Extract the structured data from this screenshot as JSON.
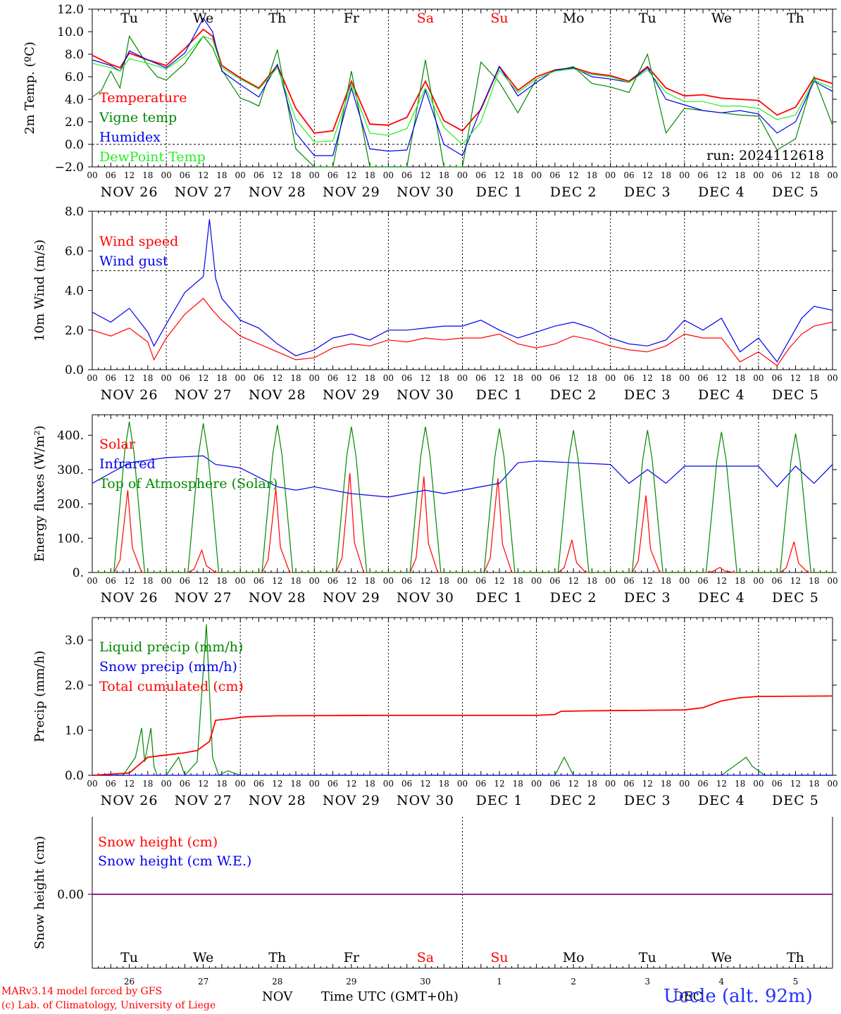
{
  "days": [
    {
      "abbr": "Tu",
      "weekend": false,
      "date": "NOV 26",
      "num": "26"
    },
    {
      "abbr": "We",
      "weekend": false,
      "date": "NOV 27",
      "num": "27"
    },
    {
      "abbr": "Th",
      "weekend": false,
      "date": "NOV 28",
      "num": "28"
    },
    {
      "abbr": "Fr",
      "weekend": false,
      "date": "NOV 29",
      "num": "29"
    },
    {
      "abbr": "Sa",
      "weekend": true,
      "date": "NOV 30",
      "num": "30"
    },
    {
      "abbr": "Su",
      "weekend": true,
      "date": "DEC  1",
      "num": "1"
    },
    {
      "abbr": "Mo",
      "weekend": false,
      "date": "DEC  2",
      "num": "2"
    },
    {
      "abbr": "Tu",
      "weekend": false,
      "date": "DEC  3",
      "num": "3"
    },
    {
      "abbr": "We",
      "weekend": false,
      "date": "DEC  4",
      "num": "4"
    },
    {
      "abbr": "Th",
      "weekend": false,
      "date": "DEC  5",
      "num": "5"
    }
  ],
  "hour_ticks": [
    "00",
    "06",
    "12",
    "18"
  ],
  "colors": {
    "red": "#ff0000",
    "green": "#008800",
    "blue": "#0000ee",
    "lightgreen": "#22ee22",
    "purple": "#800080",
    "black": "#000000"
  },
  "footer": {
    "model": "MARv3.14 model forced by GFS",
    "lab": "(c) Lab. of Climatology, University of Liege",
    "month_left": "NOV",
    "month_right": "DEC",
    "time_label": "Time UTC (GMT+0h)",
    "station": "Uccle (alt. 92m)"
  },
  "chart_data": [
    {
      "type": "line",
      "ylabel": "2m Temp. (ºC)",
      "ylim": [
        -2,
        12
      ],
      "yticks": [
        "12.0",
        "10.0",
        "8.0",
        "6.0",
        "4.0",
        "2.0",
        "0.0",
        "−2.0"
      ],
      "ref_line": 0,
      "run_label": "run: 2024112618",
      "x_unit": "hours since NOV 26 00 UTC",
      "series": [
        {
          "name": "Temperature",
          "color": "red",
          "x": [
            0,
            6,
            9,
            12,
            18,
            24,
            30,
            36,
            39,
            42,
            48,
            54,
            60,
            66,
            72,
            78,
            84,
            90,
            96,
            102,
            108,
            114,
            120,
            126,
            132,
            138,
            144,
            150,
            156,
            162,
            168,
            174,
            180,
            186,
            192,
            198,
            204,
            210,
            216,
            222,
            228,
            234,
            240
          ],
          "y": [
            7.9,
            7.1,
            6.8,
            8.1,
            7.5,
            7.0,
            8.5,
            10.2,
            9.6,
            7.0,
            5.9,
            5.0,
            7.0,
            3.2,
            1.0,
            1.2,
            5.6,
            1.8,
            1.7,
            2.4,
            5.6,
            2.1,
            1.2,
            3.1,
            6.9,
            4.8,
            6.0,
            6.6,
            6.8,
            6.3,
            6.1,
            5.6,
            6.9,
            5.0,
            4.3,
            4.4,
            4.1,
            4.0,
            3.9,
            2.6,
            3.3,
            5.9,
            5.4
          ]
        },
        {
          "name": "Vigne temp",
          "color": "green",
          "x": [
            0,
            3,
            6,
            9,
            12,
            18,
            21,
            24,
            30,
            36,
            39,
            42,
            48,
            51,
            54,
            60,
            66,
            72,
            78,
            84,
            90,
            96,
            102,
            108,
            114,
            120,
            126,
            132,
            138,
            144,
            150,
            156,
            162,
            168,
            174,
            180,
            186,
            192,
            198,
            204,
            210,
            216,
            222,
            228,
            234,
            240
          ],
          "y": [
            4.2,
            4.8,
            6.5,
            5.0,
            9.6,
            7.0,
            6.0,
            5.7,
            7.2,
            9.6,
            8.6,
            6.6,
            4.1,
            3.8,
            3.4,
            8.4,
            -0.4,
            -2.0,
            -2.0,
            6.5,
            -2.0,
            -2.0,
            -2.0,
            7.5,
            -2.0,
            -2.0,
            7.3,
            5.5,
            2.8,
            5.8,
            6.5,
            6.9,
            5.4,
            5.1,
            4.6,
            8.0,
            1.0,
            3.2,
            3.0,
            2.8,
            2.6,
            2.5,
            -0.5,
            0.5,
            6.0,
            1.7
          ]
        },
        {
          "name": "Humidex",
          "color": "blue",
          "x": [
            0,
            6,
            9,
            12,
            18,
            24,
            30,
            36,
            39,
            42,
            48,
            54,
            60,
            66,
            72,
            78,
            84,
            90,
            96,
            102,
            108,
            114,
            120,
            126,
            132,
            138,
            144,
            150,
            156,
            162,
            168,
            174,
            180,
            186,
            192,
            198,
            204,
            210,
            216,
            222,
            228,
            234,
            240
          ],
          "y": [
            7.5,
            7.0,
            6.5,
            8.3,
            7.5,
            6.8,
            8.1,
            11.2,
            10.0,
            6.5,
            5.3,
            4.2,
            7.1,
            1.0,
            -1.0,
            -1.0,
            5.0,
            -0.4,
            -0.6,
            -0.5,
            4.8,
            0.0,
            -1.0,
            3.2,
            6.9,
            4.3,
            5.5,
            6.6,
            6.8,
            6.0,
            5.8,
            5.5,
            6.8,
            4.0,
            3.5,
            3.0,
            2.8,
            3.0,
            2.7,
            1.0,
            2.0,
            5.6,
            4.7
          ]
        },
        {
          "name": "DewPoint Temp",
          "color": "lightgreen",
          "x": [
            0,
            6,
            9,
            12,
            18,
            24,
            30,
            36,
            39,
            42,
            48,
            54,
            60,
            66,
            72,
            78,
            84,
            90,
            96,
            102,
            108,
            114,
            120,
            126,
            132,
            138,
            144,
            150,
            156,
            162,
            168,
            174,
            180,
            186,
            192,
            198,
            204,
            210,
            216,
            222,
            228,
            234,
            240
          ],
          "y": [
            7.2,
            6.8,
            6.5,
            7.6,
            7.2,
            6.7,
            7.8,
            9.6,
            9.3,
            6.8,
            5.8,
            4.9,
            6.8,
            2.2,
            0.2,
            0.3,
            5.3,
            1.0,
            0.8,
            1.4,
            5.0,
            1.5,
            0.0,
            2.0,
            6.6,
            4.6,
            5.8,
            6.5,
            6.7,
            6.2,
            6.0,
            5.5,
            6.6,
            4.6,
            3.8,
            3.8,
            3.4,
            3.4,
            3.2,
            2.2,
            2.6,
            5.7,
            5.0
          ]
        }
      ]
    },
    {
      "type": "line",
      "ylabel": "10m Wind (m/s)",
      "ylim": [
        0,
        8
      ],
      "yticks": [
        "8.0",
        "6.0",
        "4.0",
        "2.0",
        "0.0"
      ],
      "ref_line": 5,
      "series": [
        {
          "name": "Wind speed",
          "color": "red",
          "x": [
            0,
            6,
            12,
            18,
            20,
            24,
            30,
            36,
            39,
            42,
            48,
            54,
            60,
            66,
            72,
            78,
            84,
            90,
            96,
            102,
            108,
            114,
            120,
            126,
            132,
            138,
            144,
            150,
            156,
            162,
            168,
            174,
            180,
            186,
            192,
            198,
            204,
            210,
            216,
            222,
            226,
            230,
            234,
            240
          ],
          "y": [
            2.0,
            1.7,
            2.1,
            1.4,
            0.5,
            1.6,
            2.8,
            3.6,
            3.0,
            2.5,
            1.7,
            1.3,
            0.9,
            0.5,
            0.6,
            1.1,
            1.3,
            1.2,
            1.5,
            1.4,
            1.6,
            1.5,
            1.6,
            1.6,
            1.8,
            1.3,
            1.1,
            1.3,
            1.7,
            1.5,
            1.2,
            1.0,
            0.9,
            1.2,
            1.8,
            1.6,
            1.6,
            0.4,
            0.9,
            0.2,
            1.1,
            1.8,
            2.2,
            2.4
          ]
        },
        {
          "name": "Wind gust",
          "color": "blue",
          "x": [
            0,
            6,
            12,
            18,
            20,
            24,
            30,
            36,
            38,
            40,
            42,
            48,
            54,
            60,
            66,
            72,
            78,
            84,
            90,
            96,
            102,
            108,
            114,
            120,
            126,
            132,
            138,
            144,
            150,
            156,
            162,
            168,
            174,
            180,
            186,
            192,
            198,
            204,
            210,
            216,
            222,
            226,
            230,
            234,
            240
          ],
          "y": [
            2.9,
            2.4,
            3.1,
            1.9,
            1.2,
            2.3,
            3.9,
            4.7,
            7.6,
            4.6,
            3.6,
            2.5,
            2.1,
            1.3,
            0.7,
            1.0,
            1.6,
            1.8,
            1.5,
            2.0,
            2.0,
            2.1,
            2.2,
            2.2,
            2.5,
            2.0,
            1.6,
            1.9,
            2.2,
            2.4,
            2.1,
            1.6,
            1.3,
            1.2,
            1.5,
            2.5,
            2.0,
            2.6,
            0.9,
            1.6,
            0.4,
            1.5,
            2.6,
            3.2,
            3.0
          ]
        }
      ]
    },
    {
      "type": "line",
      "ylabel": "Energy fluxes (W/m²)",
      "ylim": [
        0,
        460
      ],
      "yticks": [
        "400.",
        "300.",
        "200.",
        "100.",
        "0."
      ],
      "series": [
        {
          "name": "Solar",
          "color": "red",
          "peaks": [
            240,
            65,
            245,
            290,
            280,
            275,
            95,
            225,
            15,
            90
          ]
        },
        {
          "name": "Infrared",
          "color": "blue",
          "x": [
            0,
            12,
            24,
            36,
            40,
            48,
            60,
            66,
            72,
            84,
            96,
            108,
            114,
            120,
            132,
            138,
            144,
            156,
            168,
            174,
            180,
            186,
            192,
            204,
            216,
            222,
            228,
            234,
            240
          ],
          "y": [
            260,
            320,
            335,
            340,
            315,
            305,
            250,
            240,
            250,
            230,
            220,
            240,
            230,
            240,
            260,
            320,
            325,
            320,
            315,
            260,
            300,
            260,
            310,
            310,
            310,
            250,
            310,
            260,
            315
          ]
        },
        {
          "name": "Top of Atmosphere (Solar)",
          "color": "green",
          "peaks": [
            440,
            435,
            430,
            425,
            425,
            420,
            415,
            415,
            410,
            405
          ]
        }
      ]
    },
    {
      "type": "line",
      "ylabel": "Precip (mm/h)",
      "ylim": [
        0,
        3.5
      ],
      "yticks": [
        "3.0",
        "2.0",
        "1.0",
        "0.0"
      ],
      "series": [
        {
          "name": "Liquid precip (mm/h)",
          "color": "green",
          "x": [
            0,
            10,
            14,
            16,
            17,
            19,
            20,
            21,
            24,
            28,
            30,
            34,
            37,
            39,
            41,
            44,
            48,
            60,
            150,
            153,
            156,
            204,
            210,
            212,
            214,
            218,
            240
          ],
          "y": [
            0,
            0,
            0.4,
            1.05,
            0.3,
            1.05,
            0.2,
            0,
            0,
            0.4,
            0,
            0.3,
            3.35,
            0.4,
            0,
            0.1,
            0,
            0,
            0,
            0.4,
            0,
            0,
            0.3,
            0.4,
            0.2,
            0,
            0
          ]
        },
        {
          "name": "Snow precip (mm/h)",
          "color": "blue",
          "x": [
            0,
            240
          ],
          "y": [
            0,
            0
          ]
        },
        {
          "name": "Total cumulated (cm)",
          "color": "red",
          "x": [
            0,
            12,
            18,
            24,
            30,
            34,
            38,
            40,
            44,
            50,
            60,
            96,
            144,
            150,
            152,
            160,
            192,
            198,
            204,
            210,
            216,
            240
          ],
          "y": [
            0,
            0.05,
            0.4,
            0.45,
            0.5,
            0.55,
            0.75,
            1.22,
            1.25,
            1.3,
            1.32,
            1.33,
            1.33,
            1.35,
            1.42,
            1.43,
            1.45,
            1.5,
            1.65,
            1.72,
            1.75,
            1.76
          ]
        }
      ]
    },
    {
      "type": "line",
      "ylabel": "Snow height (cm)",
      "yticks": [
        "0.00"
      ],
      "series": [
        {
          "name": "Snow height (cm)",
          "color": "red",
          "x": [
            0,
            240
          ],
          "y": [
            0,
            0
          ]
        },
        {
          "name": "Snow height (cm W.E.)",
          "color": "blue",
          "x": [
            0,
            240
          ],
          "y": [
            0,
            0
          ]
        }
      ]
    }
  ]
}
